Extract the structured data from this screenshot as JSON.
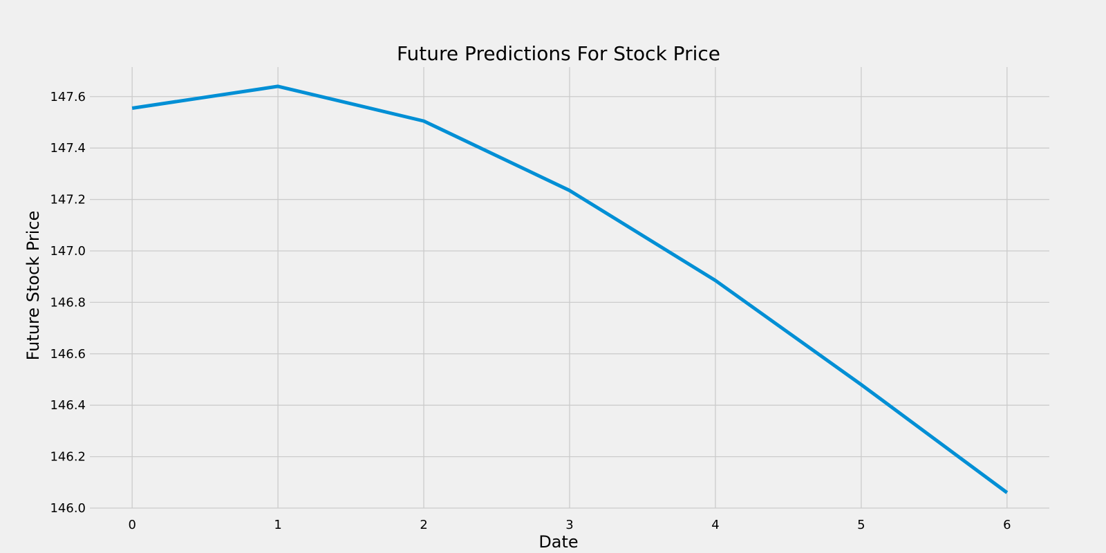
{
  "chart_data": {
    "type": "line",
    "title": "Future Predictions For Stock Price",
    "xlabel": "Date",
    "ylabel": "Future Stock Price",
    "x": [
      0,
      1,
      2,
      3,
      4,
      5,
      6
    ],
    "series": [
      {
        "values": [
          147.555,
          147.64,
          147.505,
          147.235,
          146.885,
          146.48,
          146.06
        ],
        "color": "#008fd5"
      }
    ],
    "xlim": [
      -0.29,
      6.29
    ],
    "ylim": [
      146.0,
      147.715
    ],
    "xticks": [
      0,
      1,
      2,
      3,
      4,
      5,
      6
    ],
    "xtick_labels": [
      "0",
      "1",
      "2",
      "3",
      "4",
      "5",
      "6"
    ],
    "yticks": [
      146.0,
      146.2,
      146.4,
      146.6,
      146.8,
      147.0,
      147.2,
      147.4,
      147.6
    ],
    "ytick_labels": [
      "146.0",
      "146.2",
      "146.4",
      "146.6",
      "146.8",
      "147.0",
      "147.2",
      "147.4",
      "147.6"
    ],
    "grid": true,
    "legend": false,
    "background": "#f0f0f0",
    "grid_color": "#cbcbcb"
  }
}
